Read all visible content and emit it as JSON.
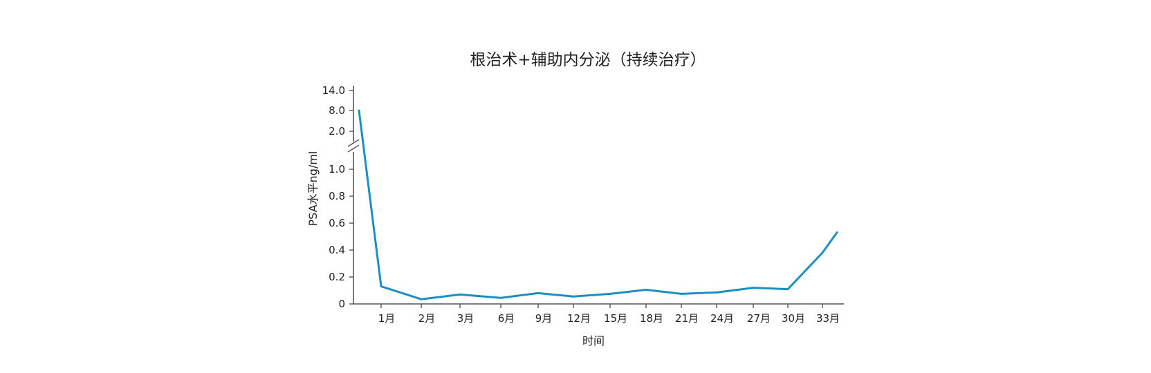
{
  "chart_data": {
    "type": "line",
    "title": "根治术+辅助内分泌（持续治疗）",
    "xlabel": "时间",
    "ylabel": "PSA水平ng/ml",
    "y_axis_broken": true,
    "y_ticks_lower": [
      "0",
      "0.2",
      "0.4",
      "0.6",
      "0.8",
      "1.0"
    ],
    "y_ticks_upper": [
      "2.0",
      "8.0",
      "14.0"
    ],
    "categories": [
      "",
      "1月",
      "2月",
      "3月",
      "6月",
      "9月",
      "12月",
      "15月",
      "18月",
      "21月",
      "24月",
      "27月",
      "30月",
      "33月",
      ""
    ],
    "series": [
      {
        "color": "#1a8fc4",
        "values": [
          8.0,
          0.13,
          0.035,
          0.07,
          0.045,
          0.08,
          0.055,
          0.075,
          0.105,
          0.075,
          0.085,
          0.12,
          0.11,
          0.38,
          0.53
        ]
      }
    ],
    "grid": false,
    "legend": "none"
  }
}
